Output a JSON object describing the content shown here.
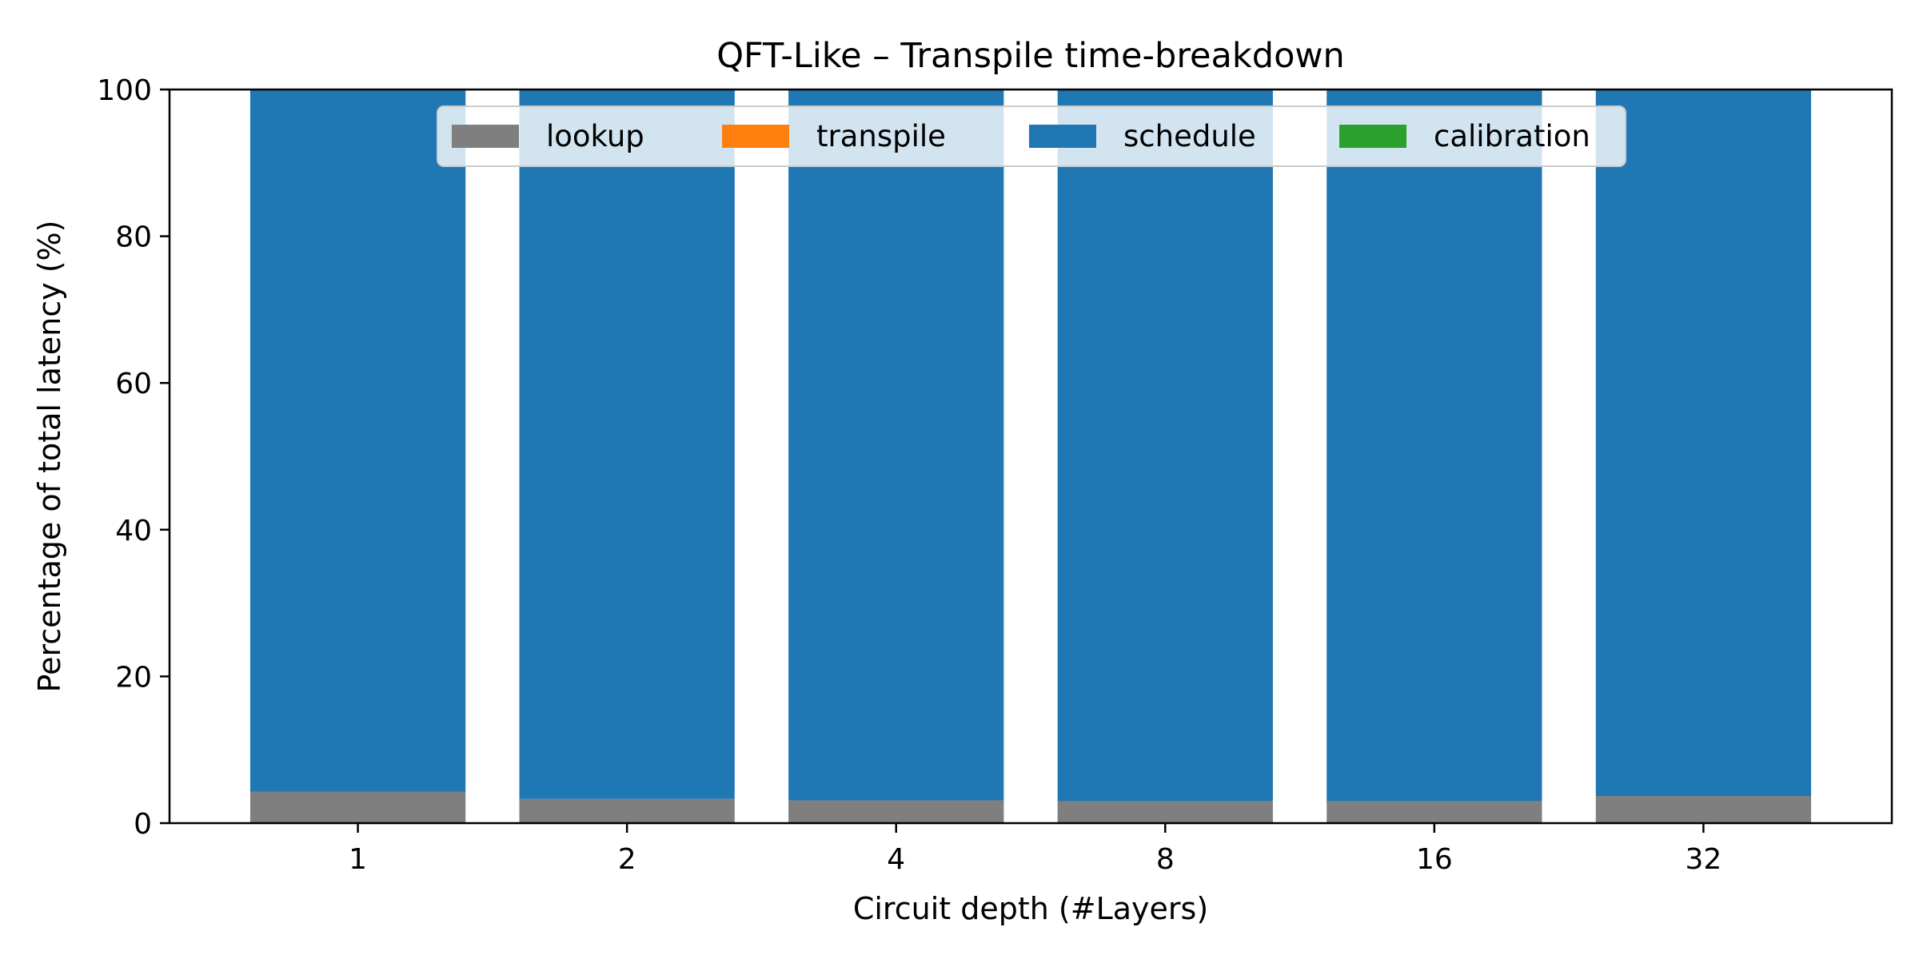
{
  "chart_data": {
    "type": "bar",
    "stacked": true,
    "title": "QFT-Like – Transpile time-breakdown",
    "xlabel": "Circuit depth (#Layers)",
    "ylabel": "Percentage of total latency (%)",
    "ylim": [
      0,
      100
    ],
    "yticks": [
      "0",
      "20",
      "40",
      "60",
      "80",
      "100"
    ],
    "categories": [
      "1",
      "2",
      "4",
      "8",
      "16",
      "32"
    ],
    "grid": false,
    "legend_position": "top-center",
    "series": [
      {
        "name": "lookup",
        "color": "#7f7f7f",
        "values": [
          4.3,
          3.3,
          3.1,
          3.0,
          3.0,
          3.7
        ]
      },
      {
        "name": "transpile",
        "color": "#ff7f0e",
        "values": [
          0,
          0,
          0,
          0,
          0,
          0
        ]
      },
      {
        "name": "schedule",
        "color": "#1f77b4",
        "values": [
          95.7,
          96.7,
          96.9,
          97.0,
          97.0,
          96.3
        ]
      },
      {
        "name": "calibration",
        "color": "#2ca02c",
        "values": [
          0,
          0,
          0,
          0,
          0,
          0
        ]
      }
    ]
  }
}
